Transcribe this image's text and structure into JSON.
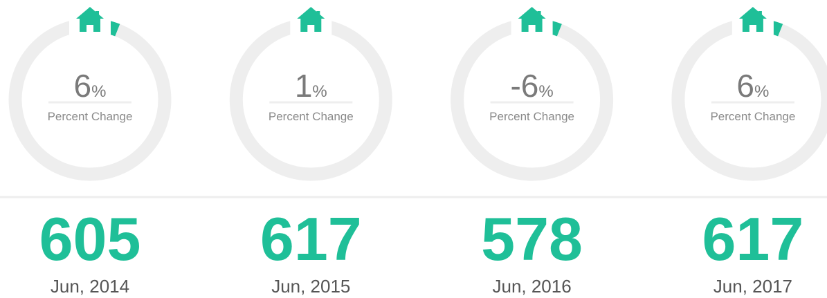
{
  "cards": [
    {
      "percent": 6,
      "unit": "%",
      "caption": "Percent Change",
      "value": 605,
      "date": "Jun, 2014"
    },
    {
      "percent": 1,
      "unit": "%",
      "caption": "Percent Change",
      "value": 617,
      "date": "Jun, 2015"
    },
    {
      "percent": -6,
      "unit": "%",
      "caption": "Percent Change",
      "value": 578,
      "date": "Jun, 2016"
    },
    {
      "percent": 6,
      "unit": "%",
      "caption": "Percent Change",
      "value": 617,
      "date": "Jun, 2017"
    }
  ]
}
